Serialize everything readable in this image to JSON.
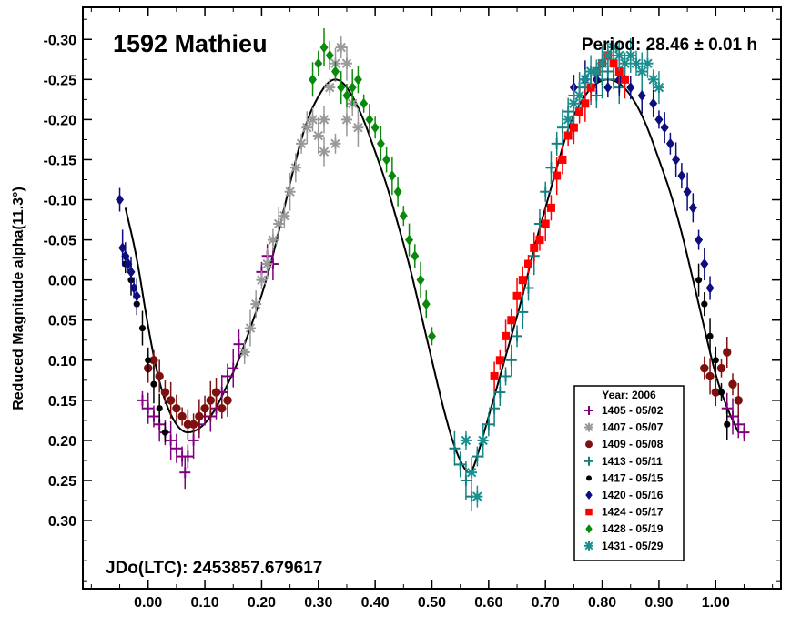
{
  "chart_data": {
    "type": "scatter",
    "title": "1592 Mathieu",
    "period_label": "Period: 28.46 ± 0.01 h",
    "jdo_label": "JDo(LTC): 2453857.679617",
    "ylabel": "Reduced Magnitude alpha(11.3°)",
    "xlabel": "",
    "xlim": [
      -0.115,
      1.115
    ],
    "ylim": [
      -0.34,
      0.385
    ],
    "y_inverted": true,
    "grid": false,
    "legend_position": "bottom-right",
    "legend_title": "Year: 2006",
    "x_ticks": [
      "0.00",
      "0.10",
      "0.20",
      "0.30",
      "0.40",
      "0.50",
      "0.60",
      "0.70",
      "0.80",
      "0.90",
      "1.00"
    ],
    "y_ticks": [
      "-0.30",
      "-0.25",
      "-0.20",
      "-0.15",
      "-0.10",
      "-0.05",
      "0.00",
      "0.05",
      "0.10",
      "0.15",
      "0.20",
      "0.25",
      "0.30"
    ],
    "colors": {
      "s1405": "#800080",
      "s1407": "#999999",
      "s1409": "#7f1010",
      "s1413": "#138080",
      "s1417": "#000000",
      "s1420": "#0d0d80",
      "s1424": "#ff0000",
      "s1428": "#0a8a0a",
      "s1431": "#1a8f8f"
    },
    "fit_curve": {
      "x": [
        -0.04,
        -0.02,
        0.0,
        0.02,
        0.04,
        0.06,
        0.08,
        0.1,
        0.12,
        0.14,
        0.16,
        0.18,
        0.2,
        0.22,
        0.24,
        0.26,
        0.28,
        0.3,
        0.32,
        0.34,
        0.36,
        0.38,
        0.4,
        0.42,
        0.44,
        0.46,
        0.48,
        0.5,
        0.52,
        0.54,
        0.56,
        0.57,
        0.58,
        0.6,
        0.62,
        0.64,
        0.66,
        0.68,
        0.7,
        0.72,
        0.74,
        0.76,
        0.78,
        0.8,
        0.82,
        0.84,
        0.86,
        0.88,
        0.9,
        0.92,
        0.94,
        0.96,
        0.98,
        1.0,
        1.02,
        1.04
      ],
      "y": [
        -0.09,
        -0.03,
        0.06,
        0.13,
        0.17,
        0.19,
        0.19,
        0.18,
        0.16,
        0.13,
        0.1,
        0.06,
        0.02,
        -0.03,
        -0.09,
        -0.15,
        -0.2,
        -0.23,
        -0.25,
        -0.25,
        -0.23,
        -0.2,
        -0.16,
        -0.12,
        -0.07,
        -0.02,
        0.04,
        0.1,
        0.16,
        0.21,
        0.24,
        0.24,
        0.22,
        0.17,
        0.12,
        0.07,
        0.02,
        -0.04,
        -0.09,
        -0.14,
        -0.19,
        -0.22,
        -0.24,
        -0.25,
        -0.25,
        -0.24,
        -0.22,
        -0.19,
        -0.15,
        -0.11,
        -0.06,
        0.0,
        0.06,
        0.12,
        0.16,
        0.19
      ]
    },
    "series": [
      {
        "name": "1405 - 05/02",
        "marker": "plus",
        "color": "#800080",
        "points": [
          [
            -0.01,
            0.15
          ],
          [
            0.0,
            0.16
          ],
          [
            0.01,
            0.17
          ],
          [
            0.02,
            0.18
          ],
          [
            0.03,
            0.19
          ],
          [
            0.04,
            0.2
          ],
          [
            0.05,
            0.21
          ],
          [
            0.06,
            0.22
          ],
          [
            0.065,
            0.24
          ],
          [
            0.07,
            0.22
          ],
          [
            0.08,
            0.2
          ],
          [
            0.09,
            0.18
          ],
          [
            0.1,
            0.17
          ],
          [
            0.11,
            0.17
          ],
          [
            0.12,
            0.16
          ],
          [
            0.13,
            0.14
          ],
          [
            0.14,
            0.12
          ],
          [
            0.15,
            0.11
          ],
          [
            0.16,
            0.08
          ],
          [
            0.2,
            -0.01
          ],
          [
            0.22,
            -0.02
          ],
          [
            0.21,
            -0.03
          ],
          [
            1.03,
            0.17
          ],
          [
            1.04,
            0.18
          ],
          [
            1.05,
            0.19
          ],
          [
            1.02,
            0.16
          ]
        ]
      },
      {
        "name": "1407 - 05/07",
        "marker": "asterisk",
        "color": "#999999",
        "points": [
          [
            0.17,
            0.09
          ],
          [
            0.18,
            0.06
          ],
          [
            0.19,
            0.03
          ],
          [
            0.2,
            0.0
          ],
          [
            0.21,
            -0.02
          ],
          [
            0.22,
            -0.05
          ],
          [
            0.23,
            -0.07
          ],
          [
            0.24,
            -0.08
          ],
          [
            0.25,
            -0.11
          ],
          [
            0.26,
            -0.14
          ],
          [
            0.27,
            -0.17
          ],
          [
            0.28,
            -0.19
          ],
          [
            0.29,
            -0.2
          ],
          [
            0.3,
            -0.18
          ],
          [
            0.31,
            -0.2
          ],
          [
            0.32,
            -0.24
          ],
          [
            0.33,
            -0.27
          ],
          [
            0.34,
            -0.29
          ],
          [
            0.35,
            -0.27
          ],
          [
            0.36,
            -0.22
          ],
          [
            0.37,
            -0.19
          ],
          [
            0.31,
            -0.16
          ],
          [
            0.33,
            -0.17
          ],
          [
            0.35,
            -0.2
          ]
        ]
      },
      {
        "name": "1409 - 05/08",
        "marker": "circle",
        "color": "#7f1010",
        "points": [
          [
            0.0,
            0.11
          ],
          [
            0.01,
            0.1
          ],
          [
            0.02,
            0.12
          ],
          [
            0.03,
            0.14
          ],
          [
            0.04,
            0.15
          ],
          [
            0.05,
            0.16
          ],
          [
            0.06,
            0.17
          ],
          [
            0.07,
            0.18
          ],
          [
            0.08,
            0.18
          ],
          [
            0.09,
            0.17
          ],
          [
            0.1,
            0.16
          ],
          [
            0.11,
            0.15
          ],
          [
            0.12,
            0.14
          ],
          [
            0.13,
            0.16
          ],
          [
            0.14,
            0.15
          ],
          [
            0.98,
            0.11
          ],
          [
            0.99,
            0.12
          ],
          [
            1.0,
            0.14
          ],
          [
            1.01,
            0.11
          ],
          [
            1.02,
            0.09
          ],
          [
            1.03,
            0.13
          ],
          [
            1.04,
            0.15
          ]
        ]
      },
      {
        "name": "1413 - 05/11",
        "marker": "plus",
        "color": "#138080",
        "points": [
          [
            0.54,
            0.21
          ],
          [
            0.55,
            0.23
          ],
          [
            0.56,
            0.25
          ],
          [
            0.57,
            0.27
          ],
          [
            0.58,
            0.22
          ],
          [
            0.59,
            0.2
          ],
          [
            0.6,
            0.18
          ],
          [
            0.61,
            0.16
          ],
          [
            0.62,
            0.14
          ],
          [
            0.63,
            0.12
          ],
          [
            0.64,
            0.1
          ],
          [
            0.65,
            0.07
          ],
          [
            0.66,
            0.04
          ],
          [
            0.67,
            0.01
          ],
          [
            0.68,
            -0.03
          ],
          [
            0.69,
            -0.07
          ],
          [
            0.7,
            -0.11
          ],
          [
            0.71,
            -0.14
          ],
          [
            0.72,
            -0.17
          ],
          [
            0.73,
            -0.19
          ],
          [
            0.74,
            -0.21
          ],
          [
            0.75,
            -0.23
          ],
          [
            0.76,
            -0.24
          ],
          [
            0.77,
            -0.25
          ],
          [
            0.78,
            -0.24
          ],
          [
            0.79,
            -0.23
          ],
          [
            0.8,
            -0.25
          ],
          [
            0.81,
            -0.26
          ],
          [
            0.82,
            -0.25
          ],
          [
            0.83,
            -0.24
          ]
        ]
      },
      {
        "name": "1417 - 05/15",
        "marker": "dot",
        "color": "#000000",
        "points": [
          [
            -0.04,
            -0.02
          ],
          [
            -0.03,
            0.0
          ],
          [
            -0.02,
            0.03
          ],
          [
            -0.01,
            0.06
          ],
          [
            0.0,
            0.1
          ],
          [
            0.01,
            0.13
          ],
          [
            0.02,
            0.16
          ],
          [
            0.03,
            0.19
          ],
          [
            0.97,
            0.0
          ],
          [
            0.98,
            0.03
          ],
          [
            0.99,
            0.07
          ],
          [
            1.0,
            0.1
          ],
          [
            1.01,
            0.14
          ],
          [
            1.02,
            0.18
          ]
        ]
      },
      {
        "name": "1420 - 05/16",
        "marker": "diamond",
        "color": "#0d0d80",
        "points": [
          [
            -0.05,
            -0.1
          ],
          [
            -0.045,
            -0.04
          ],
          [
            -0.04,
            -0.03
          ],
          [
            -0.035,
            -0.02
          ],
          [
            -0.03,
            -0.01
          ],
          [
            -0.025,
            0.01
          ],
          [
            -0.02,
            0.02
          ],
          [
            0.75,
            -0.24
          ],
          [
            0.77,
            -0.25
          ],
          [
            0.79,
            -0.25
          ],
          [
            0.81,
            -0.24
          ],
          [
            0.83,
            -0.25
          ],
          [
            0.85,
            -0.24
          ],
          [
            0.87,
            -0.23
          ],
          [
            0.89,
            -0.22
          ],
          [
            0.9,
            -0.2
          ],
          [
            0.91,
            -0.19
          ],
          [
            0.92,
            -0.17
          ],
          [
            0.93,
            -0.15
          ],
          [
            0.94,
            -0.13
          ],
          [
            0.95,
            -0.11
          ],
          [
            0.96,
            -0.09
          ],
          [
            0.97,
            -0.05
          ],
          [
            0.98,
            -0.02
          ],
          [
            0.99,
            0.01
          ]
        ]
      },
      {
        "name": "1424 - 05/17",
        "marker": "square",
        "color": "#ff0000",
        "points": [
          [
            0.61,
            0.12
          ],
          [
            0.62,
            0.1
          ],
          [
            0.63,
            0.07
          ],
          [
            0.64,
            0.05
          ],
          [
            0.65,
            0.02
          ],
          [
            0.66,
            0.0
          ],
          [
            0.67,
            -0.02
          ],
          [
            0.68,
            -0.04
          ],
          [
            0.69,
            -0.05
          ],
          [
            0.7,
            -0.07
          ],
          [
            0.71,
            -0.09
          ],
          [
            0.72,
            -0.13
          ],
          [
            0.73,
            -0.15
          ],
          [
            0.74,
            -0.18
          ],
          [
            0.75,
            -0.19
          ],
          [
            0.76,
            -0.21
          ],
          [
            0.77,
            -0.22
          ],
          [
            0.78,
            -0.24
          ],
          [
            0.79,
            -0.26
          ],
          [
            0.8,
            -0.27
          ],
          [
            0.81,
            -0.28
          ],
          [
            0.82,
            -0.27
          ],
          [
            0.83,
            -0.26
          ],
          [
            0.84,
            -0.25
          ]
        ]
      },
      {
        "name": "1428 - 05/19",
        "marker": "diamond",
        "color": "#0a8a0a",
        "points": [
          [
            0.29,
            -0.25
          ],
          [
            0.3,
            -0.27
          ],
          [
            0.31,
            -0.29
          ],
          [
            0.32,
            -0.28
          ],
          [
            0.33,
            -0.26
          ],
          [
            0.34,
            -0.24
          ],
          [
            0.35,
            -0.23
          ],
          [
            0.36,
            -0.24
          ],
          [
            0.37,
            -0.25
          ],
          [
            0.38,
            -0.22
          ],
          [
            0.39,
            -0.2
          ],
          [
            0.4,
            -0.19
          ],
          [
            0.41,
            -0.17
          ],
          [
            0.42,
            -0.15
          ],
          [
            0.43,
            -0.13
          ],
          [
            0.44,
            -0.11
          ],
          [
            0.45,
            -0.08
          ],
          [
            0.46,
            -0.05
          ],
          [
            0.47,
            -0.03
          ],
          [
            0.48,
            0.0
          ],
          [
            0.49,
            0.03
          ],
          [
            0.5,
            0.07
          ]
        ]
      },
      {
        "name": "1431 - 05/29",
        "marker": "x-asterisk",
        "color": "#1a8f8f",
        "points": [
          [
            0.56,
            0.2
          ],
          [
            0.57,
            0.24
          ],
          [
            0.58,
            0.27
          ],
          [
            0.59,
            0.2
          ],
          [
            0.74,
            -0.2
          ],
          [
            0.75,
            -0.22
          ],
          [
            0.76,
            -0.23
          ],
          [
            0.77,
            -0.25
          ],
          [
            0.78,
            -0.26
          ],
          [
            0.79,
            -0.26
          ],
          [
            0.8,
            -0.27
          ],
          [
            0.81,
            -0.28
          ],
          [
            0.82,
            -0.29
          ],
          [
            0.83,
            -0.28
          ],
          [
            0.84,
            -0.27
          ],
          [
            0.85,
            -0.28
          ],
          [
            0.86,
            -0.27
          ],
          [
            0.87,
            -0.26
          ],
          [
            0.88,
            -0.27
          ],
          [
            0.89,
            -0.25
          ],
          [
            0.9,
            -0.24
          ]
        ]
      }
    ]
  }
}
